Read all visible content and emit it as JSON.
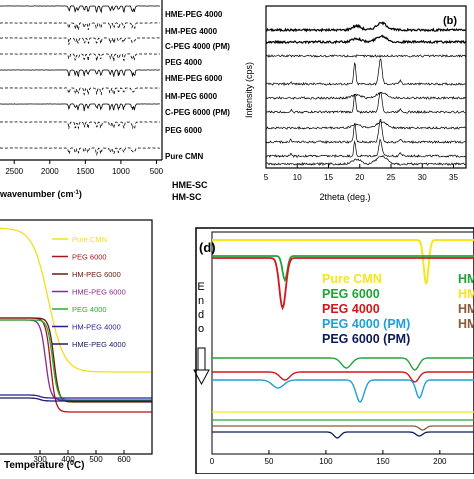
{
  "chart_data": [
    {
      "panel": "",
      "type": "line",
      "title": "",
      "xlabel": "wavenumber (cm",
      "xlabel_sup": "-1",
      "xlabel_tail": ")",
      "ylabel": "",
      "xlim": [
        2700,
        450
      ],
      "x_ticks": [
        "2500",
        "2000",
        "1500",
        "1000",
        "500"
      ],
      "x_tick_values": [
        2500,
        2000,
        1500,
        1000,
        500
      ],
      "series": [
        {
          "name": "HME-PEG 4000",
          "color": "#000000",
          "dash": "solid"
        },
        {
          "name": "HM-PEG 4000",
          "color": "#000000",
          "dash": "dashed"
        },
        {
          "name": "C-PEG 4000 (PM)",
          "color": "#000000",
          "dash": "dashed"
        },
        {
          "name": "PEG 4000",
          "color": "#000000",
          "dash": "dashed"
        },
        {
          "name": "HME-PEG 6000",
          "color": "#000000",
          "dash": "solid"
        },
        {
          "name": "HM-PEG 6000",
          "color": "#000000",
          "dash": "dashed"
        },
        {
          "name": "C-PEG 6000 (PM)",
          "color": "#000000",
          "dash": "solid"
        },
        {
          "name": "PEG 6000",
          "color": "#000000",
          "dash": "dashed"
        },
        {
          "name": "Pure CMN",
          "color": "#000000",
          "dash": "dashed"
        }
      ],
      "extra_labels": [
        "HME-SC",
        "HM-SC"
      ]
    },
    {
      "panel": "(b)",
      "type": "line",
      "title": "",
      "xlabel": "2theta (deg.)",
      "ylabel": "Intensity (cps)",
      "xlim": [
        5,
        37
      ],
      "x_ticks": [
        "5",
        "10",
        "15",
        "20",
        "25",
        "30",
        "35"
      ],
      "x_tick_values": [
        5,
        10,
        15,
        20,
        25,
        30,
        35
      ],
      "series_count": 10,
      "color": "#000000"
    },
    {
      "panel": "",
      "type": "line",
      "title": "",
      "xlabel": "Temperature (",
      "xlabel_sup": "0",
      "xlabel_tail": "C)",
      "ylabel": "",
      "xlim": [
        150,
        700
      ],
      "x_ticks": [
        "300",
        "400",
        "500",
        "600"
      ],
      "x_tick_values": [
        300,
        400,
        500,
        600
      ],
      "series": [
        {
          "name": "Pure CMN",
          "color": "#f2e01c"
        },
        {
          "name": "PEG 6000",
          "color": "#b0101a"
        },
        {
          "name": "HM-PEG 6000",
          "color": "#6a1a0a"
        },
        {
          "name": "HME-PEG 6000",
          "color": "#8a2a8a"
        },
        {
          "name": "PEG 4000",
          "color": "#22b02a"
        },
        {
          "name": "HM-PEG 4000",
          "color": "#2a1aa0"
        },
        {
          "name": "HME-PEG 4000",
          "color": "#1a1a6a"
        }
      ]
    },
    {
      "panel": "(d)",
      "type": "line",
      "title": "",
      "xlabel": "",
      "ylabel": "Endo",
      "xlim": [
        0,
        230
      ],
      "x_ticks": [
        "0",
        "50",
        "100",
        "150",
        "200"
      ],
      "x_tick_values": [
        0,
        50,
        100,
        150,
        200
      ],
      "series": [
        {
          "name": "Pure CMN",
          "color": "#f5e620"
        },
        {
          "name": "PEG 6000",
          "color": "#22a33a"
        },
        {
          "name": "PEG 4000",
          "color": "#d4161c"
        },
        {
          "name": "PEG 4000 (PM)",
          "color": "#1ea0d8"
        },
        {
          "name": "PEG 6000 (PM)",
          "color": "#0c1a5a"
        }
      ],
      "extra_series": [
        {
          "name": "HM",
          "color": "#22a33a"
        },
        {
          "name": "HM",
          "color": "#f5e620"
        },
        {
          "name": "HM",
          "color": "#8a5a3a"
        },
        {
          "name": "HM",
          "color": "#8a5a3a"
        }
      ]
    }
  ]
}
